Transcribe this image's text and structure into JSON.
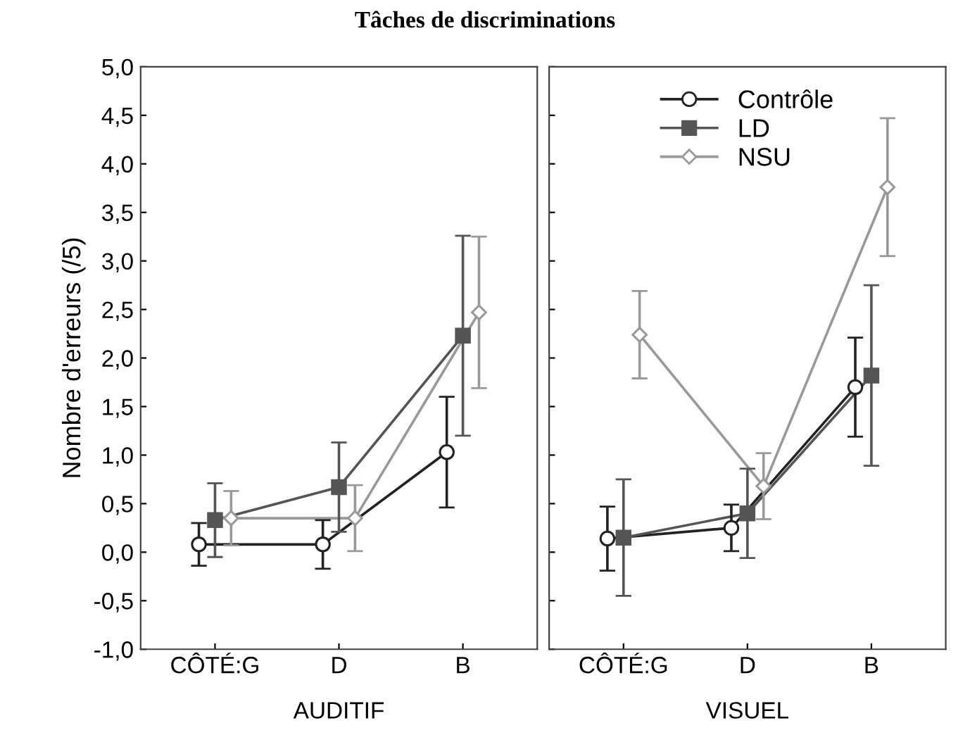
{
  "chart_data": [
    {
      "type": "line",
      "title": "Tâches de discriminations",
      "xlabel": "AUDITIF",
      "ylabel": "Nombre d'erreurs (/5)",
      "categories": [
        "CÔTÉ:G",
        "D",
        "B"
      ],
      "ylim": [
        -1.0,
        5.0
      ],
      "yticks": [
        {
          "value": -1.0,
          "label": "-1,0"
        },
        {
          "value": -0.5,
          "label": "-0,5"
        },
        {
          "value": 0.0,
          "label": "0,0"
        },
        {
          "value": 0.5,
          "label": "0,5"
        },
        {
          "value": 1.0,
          "label": "1,0"
        },
        {
          "value": 1.5,
          "label": "1,5"
        },
        {
          "value": 2.0,
          "label": "2,0"
        },
        {
          "value": 2.5,
          "label": "2,5"
        },
        {
          "value": 3.0,
          "label": "3,0"
        },
        {
          "value": 3.5,
          "label": "3,5"
        },
        {
          "value": 4.0,
          "label": "4,0"
        },
        {
          "value": 4.5,
          "label": "4,5"
        },
        {
          "value": 5.0,
          "label": "5,0"
        }
      ],
      "grid": false,
      "legend": false,
      "series": [
        {
          "color": "#222222",
          "marker": "circle",
          "values": [
            0.08,
            0.08,
            1.03
          ],
          "errors": [
            0.22,
            0.25,
            0.57
          ]
        },
        {
          "color": "#555555",
          "marker": "square",
          "values": [
            0.33,
            0.67,
            2.23
          ],
          "errors": [
            0.38,
            0.46,
            1.03
          ]
        },
        {
          "color": "#999999",
          "marker": "diamond",
          "values": [
            0.35,
            0.35,
            2.47
          ],
          "errors": [
            0.28,
            0.34,
            0.78
          ]
        }
      ]
    },
    {
      "type": "line",
      "xlabel": "VISUEL",
      "categories": [
        "CÔTÉ:G",
        "D",
        "B"
      ],
      "ylim": [
        -1.0,
        5.0
      ],
      "yticks": [
        {
          "value": -1.0,
          "label": null
        },
        {
          "value": -0.5,
          "label": null
        },
        {
          "value": 0.0,
          "label": null
        },
        {
          "value": 0.5,
          "label": null
        },
        {
          "value": 1.0,
          "label": null
        },
        {
          "value": 1.5,
          "label": null
        },
        {
          "value": 2.0,
          "label": null
        },
        {
          "value": 2.5,
          "label": null
        },
        {
          "value": 3.0,
          "label": null
        },
        {
          "value": 3.5,
          "label": null
        },
        {
          "value": 4.0,
          "label": null
        },
        {
          "value": 4.5,
          "label": null
        },
        {
          "value": 5.0,
          "label": null
        }
      ],
      "tick_labels": "x",
      "grid": false,
      "legend": "top",
      "series": [
        {
          "name": "Contrôle",
          "color": "#222222",
          "marker": "circle",
          "values": [
            0.14,
            0.25,
            1.7
          ],
          "errors": [
            0.33,
            0.24,
            0.51
          ]
        },
        {
          "name": "LD",
          "color": "#555555",
          "marker": "square",
          "values": [
            0.15,
            0.4,
            1.82
          ],
          "errors": [
            0.6,
            0.46,
            0.93
          ]
        },
        {
          "name": "NSU",
          "color": "#999999",
          "marker": "diamond",
          "values": [
            2.24,
            0.68,
            3.76
          ],
          "errors": [
            0.45,
            0.34,
            0.71
          ]
        }
      ]
    }
  ]
}
